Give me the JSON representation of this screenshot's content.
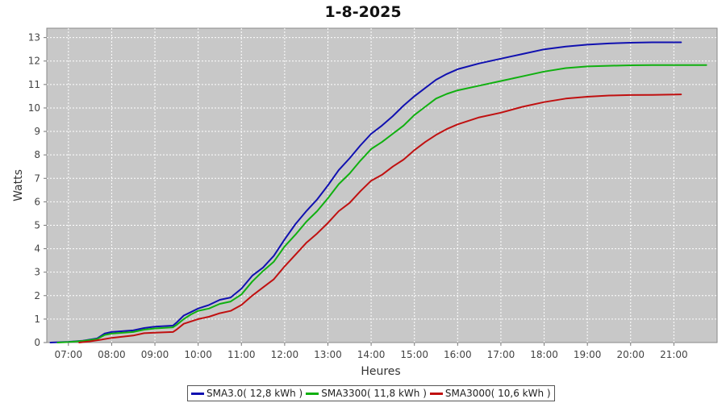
{
  "chart_data": {
    "type": "line",
    "title": "1-8-2025",
    "xlabel": "Heures",
    "ylabel": "Watts",
    "x_ticks": [
      "07:00",
      "08:00",
      "09:00",
      "10:00",
      "11:00",
      "12:00",
      "13:00",
      "14:00",
      "15:00",
      "16:00",
      "17:00",
      "18:00",
      "19:00",
      "20:00",
      "21:00"
    ],
    "xlim": [
      "06:30",
      "22:00"
    ],
    "ylim": [
      0,
      13.4
    ],
    "y_ticks": [
      0,
      1,
      2,
      3,
      4,
      5,
      6,
      7,
      8,
      9,
      10,
      11,
      12,
      13
    ],
    "grid": true,
    "legend_position": "bottom",
    "series": [
      {
        "name": "SMA3.0( 12,8 kWh )",
        "color": "#1010b0",
        "points": [
          [
            "06:35",
            0
          ],
          [
            "07:00",
            0.03
          ],
          [
            "07:20",
            0.08
          ],
          [
            "07:40",
            0.18
          ],
          [
            "07:50",
            0.38
          ],
          [
            "08:00",
            0.45
          ],
          [
            "08:30",
            0.52
          ],
          [
            "08:45",
            0.62
          ],
          [
            "09:00",
            0.68
          ],
          [
            "09:25",
            0.72
          ],
          [
            "09:30",
            0.85
          ],
          [
            "09:40",
            1.15
          ],
          [
            "09:50",
            1.3
          ],
          [
            "10:00",
            1.45
          ],
          [
            "10:15",
            1.6
          ],
          [
            "10:30",
            1.82
          ],
          [
            "10:45",
            1.92
          ],
          [
            "11:00",
            2.3
          ],
          [
            "11:15",
            2.85
          ],
          [
            "11:30",
            3.2
          ],
          [
            "11:45",
            3.7
          ],
          [
            "12:00",
            4.4
          ],
          [
            "12:15",
            5.05
          ],
          [
            "12:30",
            5.6
          ],
          [
            "12:45",
            6.1
          ],
          [
            "13:00",
            6.7
          ],
          [
            "13:15",
            7.35
          ],
          [
            "13:30",
            7.85
          ],
          [
            "13:45",
            8.4
          ],
          [
            "14:00",
            8.9
          ],
          [
            "14:15",
            9.25
          ],
          [
            "14:30",
            9.65
          ],
          [
            "14:45",
            10.1
          ],
          [
            "15:00",
            10.5
          ],
          [
            "15:15",
            10.85
          ],
          [
            "15:30",
            11.2
          ],
          [
            "15:45",
            11.45
          ],
          [
            "16:00",
            11.65
          ],
          [
            "16:30",
            11.9
          ],
          [
            "17:00",
            12.1
          ],
          [
            "17:30",
            12.3
          ],
          [
            "18:00",
            12.5
          ],
          [
            "18:30",
            12.62
          ],
          [
            "19:00",
            12.7
          ],
          [
            "19:30",
            12.75
          ],
          [
            "20:00",
            12.78
          ],
          [
            "20:30",
            12.8
          ],
          [
            "21:10",
            12.8
          ]
        ]
      },
      {
        "name": "SMA3300( 11,8 kWh )",
        "color": "#10b010",
        "points": [
          [
            "06:45",
            0
          ],
          [
            "07:00",
            0.02
          ],
          [
            "07:20",
            0.07
          ],
          [
            "07:40",
            0.15
          ],
          [
            "07:50",
            0.32
          ],
          [
            "08:00",
            0.38
          ],
          [
            "08:30",
            0.45
          ],
          [
            "08:45",
            0.55
          ],
          [
            "09:00",
            0.6
          ],
          [
            "09:25",
            0.65
          ],
          [
            "09:30",
            0.75
          ],
          [
            "09:40",
            1.0
          ],
          [
            "09:50",
            1.2
          ],
          [
            "10:00",
            1.35
          ],
          [
            "10:15",
            1.45
          ],
          [
            "10:30",
            1.65
          ],
          [
            "10:45",
            1.75
          ],
          [
            "11:00",
            2.05
          ],
          [
            "11:15",
            2.6
          ],
          [
            "11:30",
            3.05
          ],
          [
            "11:45",
            3.45
          ],
          [
            "12:00",
            4.1
          ],
          [
            "12:15",
            4.6
          ],
          [
            "12:30",
            5.15
          ],
          [
            "12:45",
            5.6
          ],
          [
            "13:00",
            6.15
          ],
          [
            "13:15",
            6.75
          ],
          [
            "13:30",
            7.2
          ],
          [
            "13:45",
            7.75
          ],
          [
            "14:00",
            8.25
          ],
          [
            "14:15",
            8.55
          ],
          [
            "14:30",
            8.9
          ],
          [
            "14:45",
            9.25
          ],
          [
            "15:00",
            9.7
          ],
          [
            "15:15",
            10.05
          ],
          [
            "15:30",
            10.4
          ],
          [
            "15:45",
            10.6
          ],
          [
            "16:00",
            10.75
          ],
          [
            "16:30",
            10.95
          ],
          [
            "17:00",
            11.15
          ],
          [
            "17:30",
            11.35
          ],
          [
            "18:00",
            11.55
          ],
          [
            "18:30",
            11.7
          ],
          [
            "19:00",
            11.77
          ],
          [
            "19:30",
            11.8
          ],
          [
            "20:00",
            11.82
          ],
          [
            "20:30",
            11.83
          ],
          [
            "21:45",
            11.83
          ]
        ]
      },
      {
        "name": "SMA3000( 10,6 kWh )",
        "color": "#c01010",
        "points": [
          [
            "07:15",
            0
          ],
          [
            "07:30",
            0.05
          ],
          [
            "07:45",
            0.12
          ],
          [
            "08:00",
            0.2
          ],
          [
            "08:30",
            0.3
          ],
          [
            "08:45",
            0.4
          ],
          [
            "09:00",
            0.42
          ],
          [
            "09:25",
            0.45
          ],
          [
            "09:30",
            0.55
          ],
          [
            "09:40",
            0.8
          ],
          [
            "09:50",
            0.9
          ],
          [
            "10:00",
            1.0
          ],
          [
            "10:15",
            1.1
          ],
          [
            "10:30",
            1.25
          ],
          [
            "10:45",
            1.35
          ],
          [
            "11:00",
            1.6
          ],
          [
            "11:15",
            2.0
          ],
          [
            "11:30",
            2.35
          ],
          [
            "11:45",
            2.7
          ],
          [
            "12:00",
            3.25
          ],
          [
            "12:15",
            3.75
          ],
          [
            "12:30",
            4.25
          ],
          [
            "12:45",
            4.65
          ],
          [
            "13:00",
            5.1
          ],
          [
            "13:15",
            5.6
          ],
          [
            "13:30",
            5.95
          ],
          [
            "13:45",
            6.45
          ],
          [
            "14:00",
            6.9
          ],
          [
            "14:15",
            7.15
          ],
          [
            "14:30",
            7.5
          ],
          [
            "14:45",
            7.8
          ],
          [
            "15:00",
            8.2
          ],
          [
            "15:15",
            8.55
          ],
          [
            "15:30",
            8.85
          ],
          [
            "15:45",
            9.1
          ],
          [
            "16:00",
            9.3
          ],
          [
            "16:30",
            9.6
          ],
          [
            "17:00",
            9.8
          ],
          [
            "17:30",
            10.05
          ],
          [
            "18:00",
            10.25
          ],
          [
            "18:30",
            10.4
          ],
          [
            "19:00",
            10.48
          ],
          [
            "19:30",
            10.53
          ],
          [
            "20:00",
            10.55
          ],
          [
            "20:30",
            10.56
          ],
          [
            "21:10",
            10.58
          ]
        ]
      }
    ]
  }
}
